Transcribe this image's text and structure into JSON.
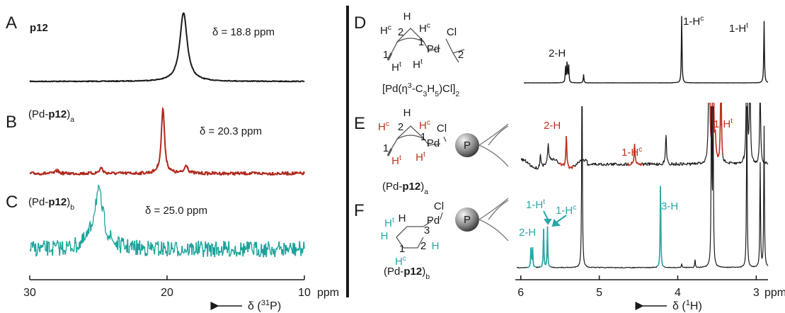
{
  "left_panel": {
    "xlim": [
      30,
      10
    ],
    "xticks": [
      30,
      20,
      10
    ],
    "unit": "ppm",
    "axis_label": [
      {
        "text": "δ ("
      },
      {
        "text": "31",
        "style": "sup"
      },
      {
        "text": "P)"
      }
    ],
    "spectra": [
      {
        "letter": "A",
        "name": [
          {
            "text": "p12",
            "style": "bold"
          }
        ],
        "annotation": "δ = 18.8 ppm",
        "color": "#1a1a1a",
        "peaks": [
          {
            "ppm": 18.8,
            "height": 97
          }
        ]
      },
      {
        "letter": "B",
        "name": [
          {
            "text": "(Pd-"
          },
          {
            "text": "p12",
            "style": "bold"
          },
          {
            "text": ")"
          },
          {
            "text": "a",
            "style": "sub"
          }
        ],
        "annotation": "δ = 20.3 ppm",
        "color": "#b0281c",
        "peaks": [
          {
            "ppm": 20.3,
            "height": 92
          },
          {
            "ppm": 18.6,
            "height": 12
          },
          {
            "ppm": 24.8,
            "height": 8
          },
          {
            "ppm": 28,
            "height": 4
          }
        ]
      },
      {
        "letter": "C",
        "name": [
          {
            "text": "(Pd-"
          },
          {
            "text": "p12",
            "style": "bold"
          },
          {
            "text": ")"
          },
          {
            "text": "b",
            "style": "sub"
          }
        ],
        "annotation": "δ = 25.0 ppm",
        "color": "#1aa39a",
        "peaks": [
          {
            "ppm": 25.0,
            "height": 80
          }
        ]
      }
    ]
  },
  "right_panel": {
    "xlim": [
      6.07,
      2.85
    ],
    "xticks": [
      6,
      5,
      4,
      3
    ],
    "unit": "ppm",
    "axis_label": [
      {
        "text": "δ ("
      },
      {
        "text": "1",
        "style": "sup"
      },
      {
        "text": "H)"
      }
    ],
    "spectra": [
      {
        "letter": "D",
        "color": "#1a1a1a",
        "name": [
          {
            "text": "[Pd(η"
          },
          {
            "text": "3",
            "style": "sup"
          },
          {
            "text": "-C"
          },
          {
            "text": "3",
            "style": "sub"
          },
          {
            "text": "H"
          },
          {
            "text": "5",
            "style": "sub"
          },
          {
            "text": ")Cl]"
          },
          {
            "text": "2",
            "style": "sub"
          }
        ],
        "atoms": [
          [
            {
              "text": "H"
            },
            {
              "text": "c",
              "style": "sup"
            }
          ],
          [
            {
              "text": "H"
            }
          ],
          [
            {
              "text": "2"
            }
          ],
          [
            {
              "text": "H"
            },
            {
              "text": "c",
              "style": "sup"
            }
          ],
          [
            {
              "text": "1"
            }
          ],
          [
            {
              "text": "Pd"
            }
          ],
          [
            {
              "text": "Cl"
            }
          ],
          [
            {
              "text": "1"
            }
          ],
          [
            {
              "text": "H"
            },
            {
              "text": "t",
              "style": "sup"
            }
          ],
          [
            {
              "text": "H"
            },
            {
              "text": "t",
              "style": "sup"
            }
          ],
          [
            {
              "text": "2"
            }
          ]
        ],
        "labels": [
          {
            "parts": [
              {
                "text": "2-H"
              }
            ]
          },
          {
            "parts": [
              {
                "text": "1-H"
              },
              {
                "text": "c",
                "style": "sup"
              }
            ]
          },
          {
            "parts": [
              {
                "text": "1-H"
              },
              {
                "text": "t",
                "style": "sup"
              }
            ]
          }
        ],
        "peaks": [
          {
            "ppm": 5.43,
            "height": 22
          },
          {
            "ppm": 5.41,
            "height": 30
          },
          {
            "ppm": 5.39,
            "height": 25
          },
          {
            "ppm": 5.2,
            "height": 12
          },
          {
            "ppm": 3.95,
            "height": 95
          },
          {
            "ppm": 2.9,
            "height": 88
          }
        ]
      },
      {
        "letter": "E",
        "color": "#1a1a1a",
        "highlight": "#c0321f",
        "name": [
          {
            "text": "(Pd-"
          },
          {
            "text": "p12",
            "style": "bold"
          },
          {
            "text": ")"
          },
          {
            "text": "a",
            "style": "sub"
          }
        ],
        "atoms": [
          [
            {
              "text": "H"
            },
            {
              "text": "c",
              "style": "sup"
            }
          ],
          [
            {
              "text": "H"
            }
          ],
          [
            {
              "text": "2"
            }
          ],
          [
            {
              "text": "H"
            },
            {
              "text": "c",
              "style": "sup"
            }
          ],
          [
            {
              "text": "1"
            }
          ],
          [
            {
              "text": "Cl"
            }
          ],
          [
            {
              "text": "Pd"
            }
          ],
          [
            {
              "text": "1"
            }
          ],
          [
            {
              "text": "H"
            },
            {
              "text": "t",
              "style": "sup"
            }
          ],
          [
            {
              "text": "H"
            },
            {
              "text": "t",
              "style": "sup"
            }
          ],
          [
            {
              "text": "P"
            }
          ]
        ],
        "labels": [
          {
            "parts": [
              {
                "text": "2-H"
              }
            ]
          },
          {
            "parts": [
              {
                "text": "1-H"
              },
              {
                "text": "c",
                "style": "sup"
              }
            ]
          },
          {
            "parts": [
              {
                "text": "1-H"
              },
              {
                "text": "t",
                "style": "sup"
              }
            ]
          }
        ],
        "peaks": [
          {
            "ppm": 5.42,
            "height": 45,
            "highlight": true
          },
          {
            "ppm": 4.55,
            "height": 28,
            "highlight": true
          },
          {
            "ppm": 3.52,
            "height": 30,
            "highlight": true
          },
          {
            "ppm": 5.75,
            "height": 20
          },
          {
            "ppm": 5.65,
            "height": 25
          },
          {
            "ppm": 4.15,
            "height": 40
          },
          {
            "ppm": 3.6,
            "height": 220
          },
          {
            "ppm": 3.55,
            "height": 200
          },
          {
            "ppm": 3.45,
            "height": 120
          },
          {
            "ppm": 3.12,
            "height": 200
          },
          {
            "ppm": 3.08,
            "height": 120
          },
          {
            "ppm": 2.95,
            "height": 100
          }
        ]
      },
      {
        "letter": "F",
        "color": "#1a1a1a",
        "highlight": "#2aa7a7",
        "name": [
          {
            "text": "(Pd-"
          },
          {
            "text": "p12",
            "style": "bold"
          },
          {
            "text": ")"
          },
          {
            "text": "b",
            "style": "sub"
          }
        ],
        "atoms": [
          [
            {
              "text": "Cl"
            }
          ],
          [
            {
              "text": "Pd"
            }
          ],
          [
            {
              "text": "H"
            }
          ],
          [
            {
              "text": "3"
            }
          ],
          [
            {
              "text": "H"
            },
            {
              "text": "t",
              "style": "sup"
            }
          ],
          [
            {
              "text": "H"
            }
          ],
          [
            {
              "text": "2"
            }
          ],
          [
            {
              "text": "H"
            }
          ],
          [
            {
              "text": "1"
            }
          ],
          [
            {
              "text": "H"
            },
            {
              "text": "c",
              "style": "sup"
            }
          ],
          [
            {
              "text": "P"
            }
          ]
        ],
        "labels": [
          {
            "parts": [
              {
                "text": "2-H"
              }
            ]
          },
          {
            "parts": [
              {
                "text": "1-H"
              },
              {
                "text": "t",
                "style": "sup"
              }
            ]
          },
          {
            "parts": [
              {
                "text": "1-H"
              },
              {
                "text": "c",
                "style": "sup"
              }
            ]
          },
          {
            "parts": [
              {
                "text": "3-H"
              }
            ]
          }
        ],
        "peaks": [
          {
            "ppm": 5.87,
            "height": 30,
            "highlight": true
          },
          {
            "ppm": 5.85,
            "height": 28,
            "highlight": true
          },
          {
            "ppm": 5.71,
            "height": 55,
            "highlight": true
          },
          {
            "ppm": 5.66,
            "height": 58,
            "highlight": true
          },
          {
            "ppm": 4.22,
            "height": 120,
            "highlight": true
          },
          {
            "ppm": 5.22,
            "height": 300
          },
          {
            "ppm": 3.57,
            "height": 300
          },
          {
            "ppm": 3.55,
            "height": 230
          },
          {
            "ppm": 3.12,
            "height": 250
          },
          {
            "ppm": 3.78,
            "height": 12
          },
          {
            "ppm": 3.95,
            "height": 6
          },
          {
            "ppm": 2.95,
            "height": 150
          },
          {
            "ppm": 2.9,
            "height": 200
          }
        ]
      }
    ]
  }
}
